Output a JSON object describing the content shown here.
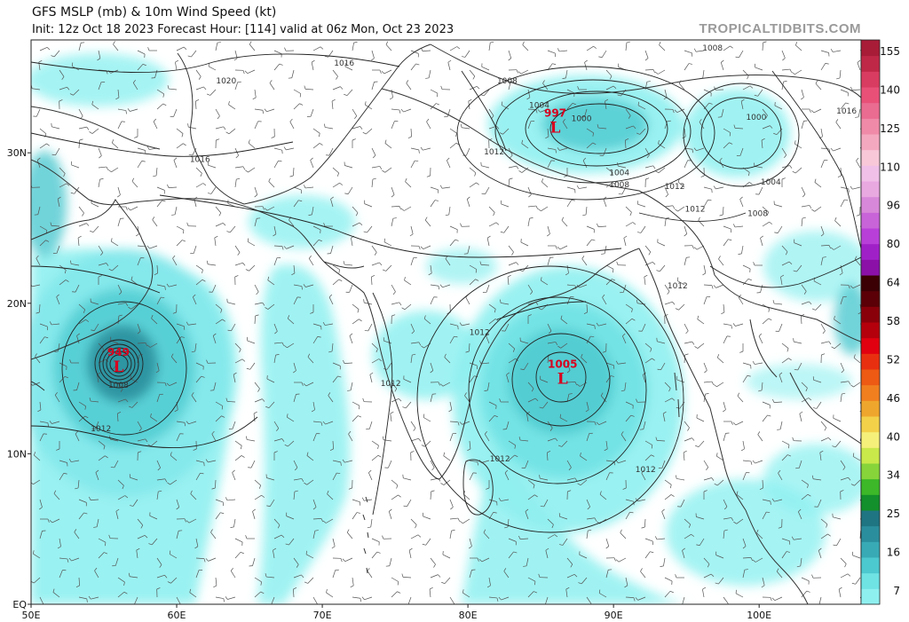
{
  "header": {
    "title": "GFS MSLP (mb) & 10m Wind Speed (kt)",
    "subtitle": "Init: 12z Oct 18 2023   Forecast Hour: [114]   valid at 06z Mon, Oct 23 2023",
    "brand": "TROPICALTIDBITS.COM"
  },
  "map": {
    "lon_range": [
      50,
      107
    ],
    "lat_range": [
      0,
      37.5
    ],
    "x_ticks": [
      {
        "lon": 50,
        "label": "50E"
      },
      {
        "lon": 60,
        "label": "60E"
      },
      {
        "lon": 70,
        "label": "70E"
      },
      {
        "lon": 80,
        "label": "80E"
      },
      {
        "lon": 90,
        "label": "90E"
      },
      {
        "lon": 100,
        "label": "100E"
      }
    ],
    "y_ticks": [
      {
        "lat": 0,
        "label": "EQ"
      },
      {
        "lat": 10,
        "label": "10N"
      },
      {
        "lat": 20,
        "label": "20N"
      },
      {
        "lat": 30,
        "label": "30N"
      }
    ],
    "colors": {
      "land_line": "#333333",
      "isobar": "#222222",
      "wind_light": "#8ff0f0",
      "wind_mid": "#45c8cc",
      "wind_strong": "#2a8f9e",
      "center": "#d8001e"
    },
    "pressure_centers": [
      {
        "label": "L",
        "value": "997",
        "lon": 86.0,
        "lat": 31.7
      },
      {
        "label": "L",
        "value": "1005",
        "lon": 86.5,
        "lat": 15.0
      },
      {
        "label": "L",
        "value": "949",
        "lon": 56.0,
        "lat": 15.8
      }
    ],
    "isobar_labels": [
      {
        "text": "1016",
        "lon": 71.5,
        "lat": 35.8
      },
      {
        "text": "1020",
        "lon": 63.4,
        "lat": 34.6
      },
      {
        "text": "1016",
        "lon": 61.6,
        "lat": 29.4
      },
      {
        "text": "1008",
        "lon": 82.7,
        "lat": 34.6
      },
      {
        "text": "1008",
        "lon": 96.8,
        "lat": 36.8
      },
      {
        "text": "1004",
        "lon": 84.9,
        "lat": 33.0
      },
      {
        "text": "1000",
        "lon": 87.8,
        "lat": 32.1
      },
      {
        "text": "1012",
        "lon": 81.8,
        "lat": 29.9
      },
      {
        "text": "1004",
        "lon": 90.4,
        "lat": 28.5
      },
      {
        "text": "1008",
        "lon": 90.4,
        "lat": 27.7
      },
      {
        "text": "1012",
        "lon": 94.2,
        "lat": 27.6
      },
      {
        "text": "1000",
        "lon": 99.8,
        "lat": 32.2
      },
      {
        "text": "1004",
        "lon": 100.8,
        "lat": 27.9
      },
      {
        "text": "1016",
        "lon": 106.0,
        "lat": 32.6
      },
      {
        "text": "1012",
        "lon": 95.6,
        "lat": 26.1
      },
      {
        "text": "1008",
        "lon": 99.9,
        "lat": 25.8
      },
      {
        "text": "1012",
        "lon": 94.4,
        "lat": 21.0
      },
      {
        "text": "1012",
        "lon": 80.8,
        "lat": 17.9
      },
      {
        "text": "1012",
        "lon": 74.7,
        "lat": 14.5
      },
      {
        "text": "1008",
        "lon": 56.0,
        "lat": 14.4
      },
      {
        "text": "1012",
        "lon": 54.8,
        "lat": 11.5
      },
      {
        "text": "1012",
        "lon": 82.2,
        "lat": 9.5
      },
      {
        "text": "1012",
        "lon": 92.2,
        "lat": 8.8
      }
    ]
  },
  "colorbar": {
    "levels": [
      7,
      16,
      25,
      34,
      40,
      46,
      52,
      58,
      64,
      80,
      96,
      110,
      125,
      140,
      155
    ],
    "colors": [
      "#8ff0f0",
      "#6fe2e4",
      "#4cc9cf",
      "#38aab6",
      "#2b8e9c",
      "#1f7582",
      "#138f2b",
      "#3cb828",
      "#86d43a",
      "#c9e84a",
      "#f5f07a",
      "#f3d24a",
      "#efa62c",
      "#f07f20",
      "#ec5a14",
      "#e83010",
      "#e0000f",
      "#b4000c",
      "#8a000a",
      "#5a0006",
      "#3a0004",
      "#8a10a8",
      "#a020c8",
      "#b840d8",
      "#c864d8",
      "#d888d8",
      "#e8a8e0",
      "#f0c0e8",
      "#f8c8d8",
      "#f4a8c0",
      "#ef8aa8",
      "#ea6c90",
      "#e85078",
      "#d83c60",
      "#c02848",
      "#a81c38"
    ]
  }
}
